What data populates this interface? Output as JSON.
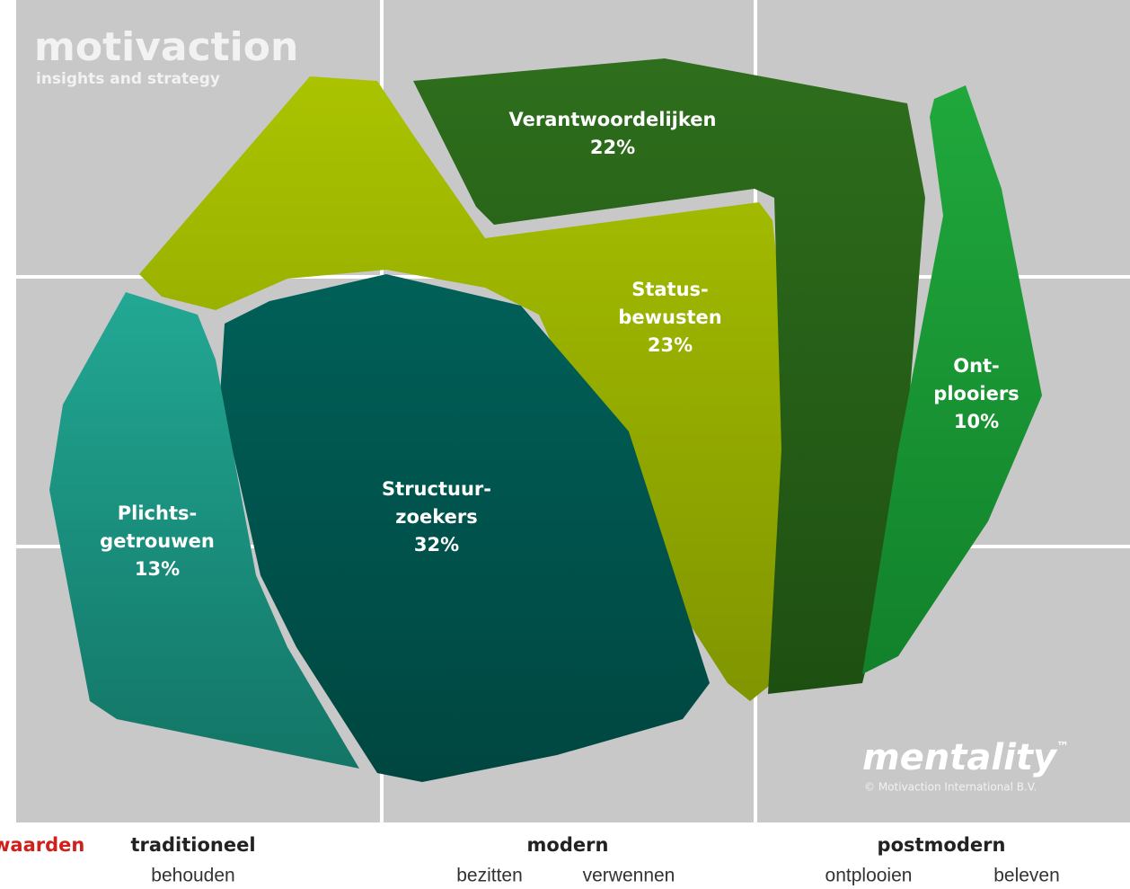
{
  "logo": {
    "name": "motivaction",
    "tagline": "insights and strategy"
  },
  "brand": {
    "name": "mentality",
    "mark": "™",
    "copyright": "© Motivaction International B.V."
  },
  "segments": [
    {
      "label": [
        "Verantwoordelijken"
      ],
      "share": "22%"
    },
    {
      "label": [
        "Status-",
        "bewusten"
      ],
      "share": "23%"
    },
    {
      "label": [
        "Ont-",
        "plooiers"
      ],
      "share": "10%"
    },
    {
      "label": [
        "Structuur-",
        "zoekers"
      ],
      "share": "32%"
    },
    {
      "label": [
        "Plichts-",
        "getrouwen"
      ],
      "share": "13%"
    }
  ],
  "axis": {
    "title": "waarden",
    "columns": [
      {
        "name": "traditioneel",
        "values": [
          "behouden"
        ]
      },
      {
        "name": "modern",
        "values": [
          "bezitten",
          "verwennen"
        ]
      },
      {
        "name": "postmodern",
        "values": [
          "ontplooien",
          "beleven"
        ]
      }
    ]
  }
}
